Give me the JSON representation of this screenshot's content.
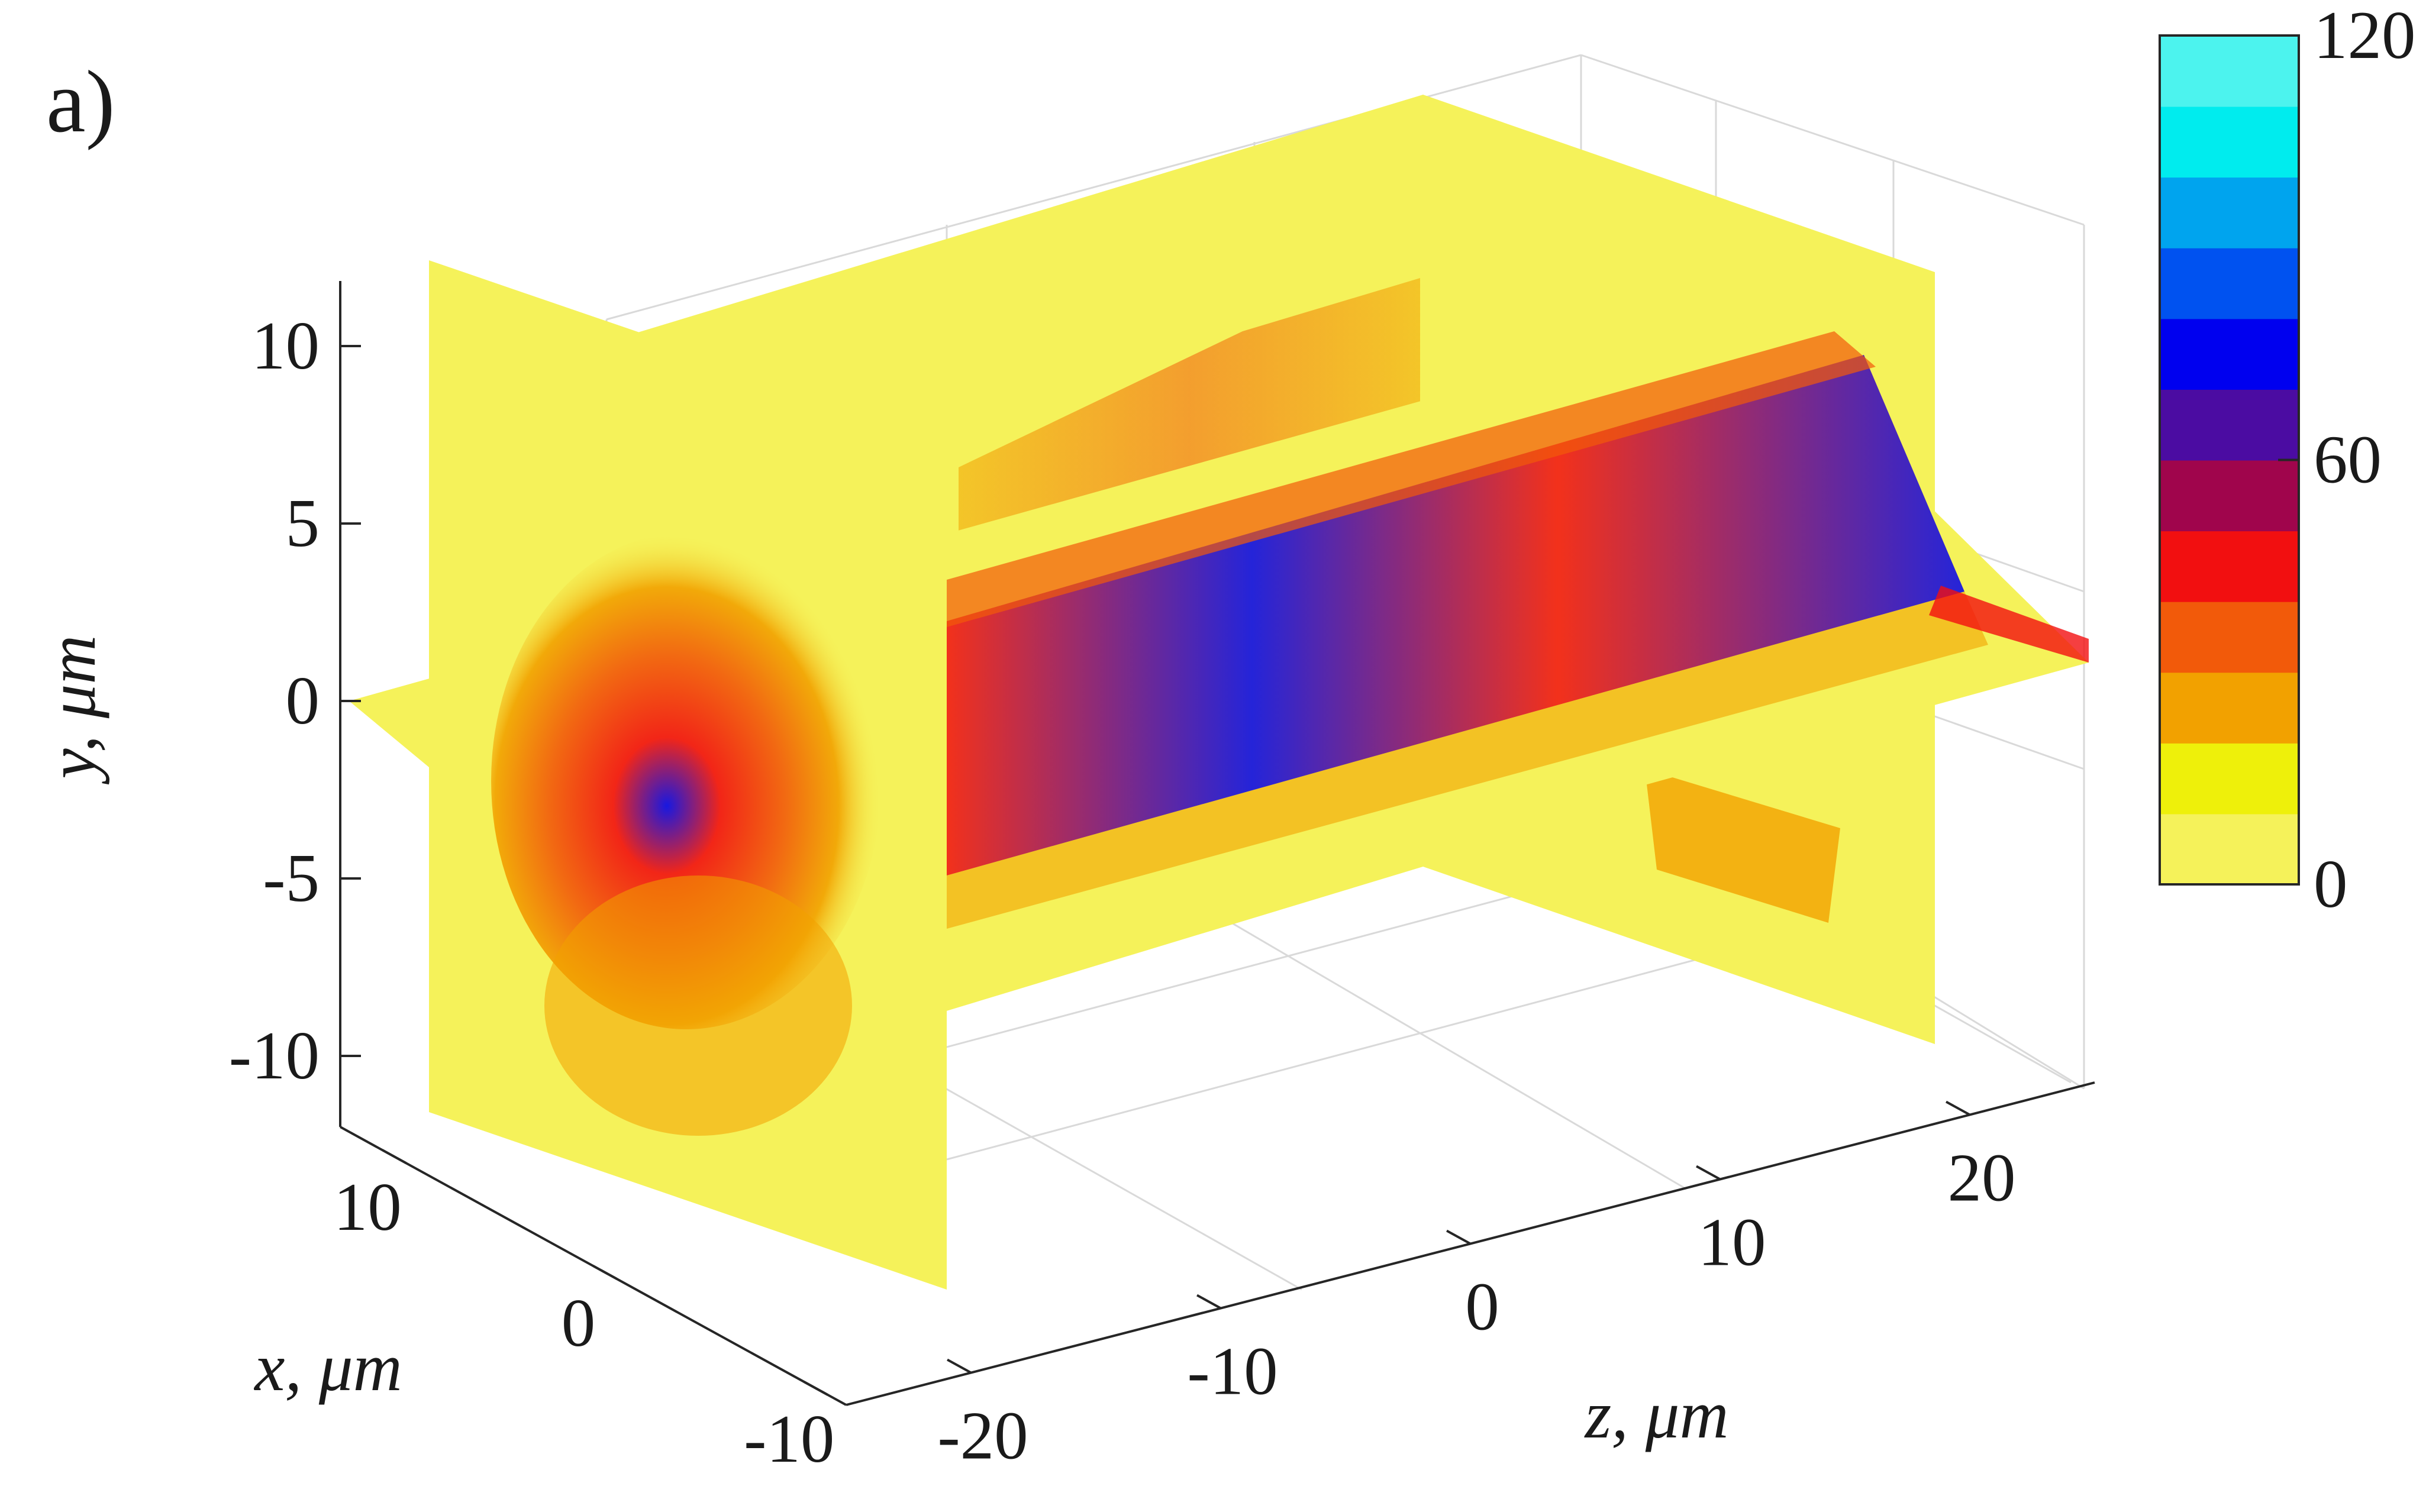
{
  "panel_label": "a)",
  "chart_data": {
    "type": "heatmap",
    "title": "",
    "view": "3-D slice plot (orthogonal planes x=0, y=0, z=-20 and z=20)",
    "slices": [
      "x = 0",
      "y = 0",
      "z = -20",
      "z = 20"
    ],
    "xlabel": "x, μm",
    "ylabel": "y, μm",
    "zlabel": "z, μm",
    "xlim": [
      -12,
      12
    ],
    "ylim": [
      -12,
      12
    ],
    "zlim": [
      -25,
      25
    ],
    "x_ticks": [
      "10",
      "0",
      "-10"
    ],
    "y_ticks": [
      "10",
      "5",
      "0",
      "-5",
      "-10"
    ],
    "z_ticks": [
      "-20",
      "-10",
      "0",
      "10",
      "20"
    ],
    "grid": true,
    "colorbar": {
      "position": "right",
      "min": 0,
      "max": 120,
      "tick_labels": [
        "120",
        "60",
        "0"
      ],
      "levels": 12,
      "colors": [
        "#f5f25a",
        "#eef00a",
        "#f2a100",
        "#f25a0a",
        "#f20f10",
        "#a0054c",
        "#4b0ca2",
        "#0000ef",
        "#0052f0",
        "#00a4ee",
        "#00ecee",
        "#4cf3ee"
      ]
    }
  }
}
